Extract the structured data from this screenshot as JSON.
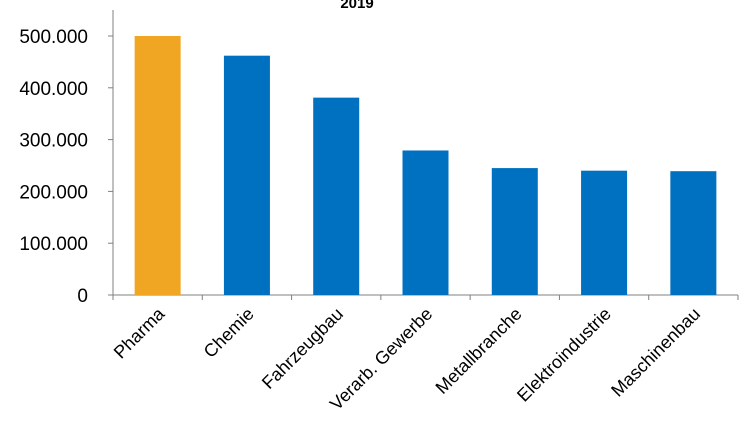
{
  "chart_data": {
    "type": "bar",
    "title": "2019",
    "xlabel": "",
    "ylabel": "",
    "categories": [
      "Pharma",
      "Chemie",
      "Fahrzeugbau",
      "Verarb. Gewerbe",
      "Metallbranche",
      "Elektroindustrie",
      "Maschinenbau"
    ],
    "values": [
      500000,
      462000,
      381000,
      279000,
      245000,
      240000,
      239000
    ],
    "highlight_index": 0,
    "ylim": [
      0,
      500000
    ],
    "yticks": [
      0,
      100000,
      200000,
      300000,
      400000,
      500000
    ],
    "ytick_labels": [
      "0",
      "100.000",
      "200.000",
      "300.000",
      "400.000",
      "500.000"
    ],
    "grid": false,
    "legend": "none",
    "colors": {
      "highlight": "#F0A623",
      "bar": "#0070C0",
      "axis": "#808080"
    }
  }
}
